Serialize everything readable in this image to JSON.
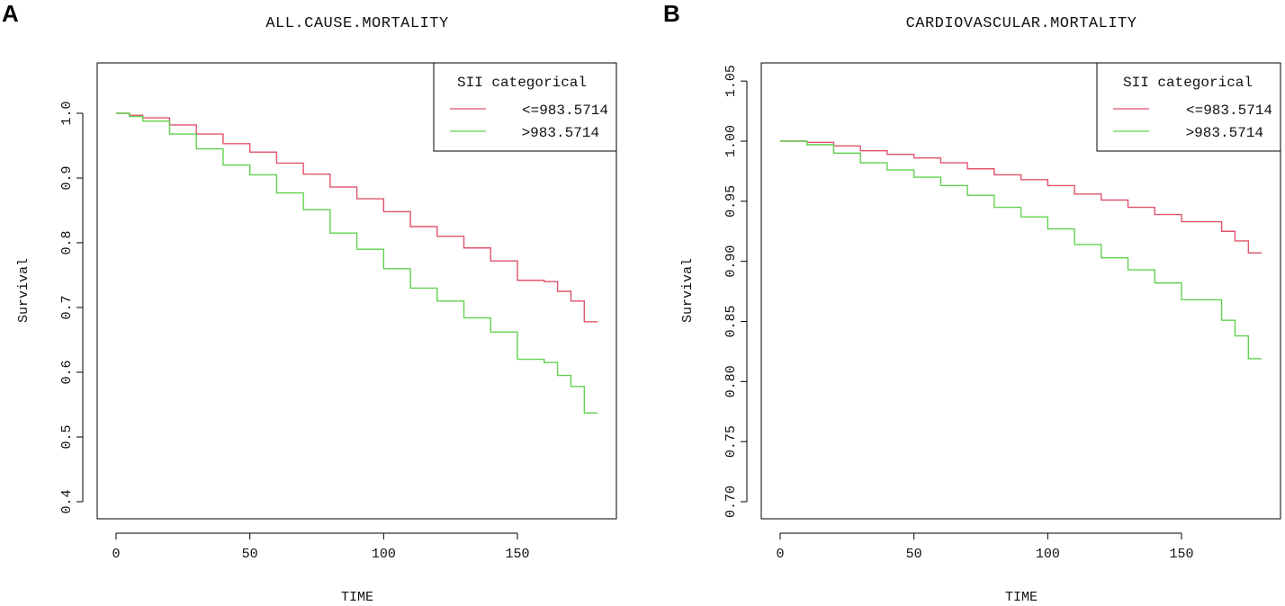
{
  "chart_data": [
    {
      "panel": "A",
      "type": "line",
      "title": "ALL.CAUSE.MORTALITY",
      "xlabel": "TIME",
      "ylabel": "Survival",
      "xlim": [
        0,
        180
      ],
      "ylim": [
        0.4,
        1.05
      ],
      "xticks": [
        0,
        50,
        100,
        150
      ],
      "yticks": [
        0.4,
        0.5,
        0.6,
        0.7,
        0.8,
        0.9,
        1.0
      ],
      "ytick_labels": [
        "0.4",
        "0.5",
        "0.6",
        "0.7",
        "0.8",
        "0.9",
        "1.0"
      ],
      "legend": {
        "title": "SII categorical",
        "position": "top-right"
      },
      "series": [
        {
          "name": "<=983.5714",
          "color": "#df536b",
          "x": [
            0,
            5,
            10,
            20,
            30,
            40,
            50,
            60,
            70,
            80,
            90,
            100,
            110,
            120,
            130,
            140,
            150,
            160,
            165,
            170,
            175,
            180
          ],
          "y": [
            1.0,
            0.997,
            0.993,
            0.982,
            0.968,
            0.953,
            0.94,
            0.923,
            0.906,
            0.886,
            0.868,
            0.848,
            0.825,
            0.81,
            0.792,
            0.772,
            0.742,
            0.74,
            0.725,
            0.71,
            0.678,
            0.678
          ]
        },
        {
          "name": ">983.5714",
          "color": "#61d04f",
          "x": [
            0,
            5,
            10,
            20,
            30,
            40,
            50,
            60,
            70,
            80,
            90,
            100,
            110,
            120,
            130,
            140,
            150,
            160,
            165,
            170,
            175,
            180
          ],
          "y": [
            1.0,
            0.995,
            0.988,
            0.968,
            0.945,
            0.92,
            0.905,
            0.877,
            0.851,
            0.815,
            0.79,
            0.76,
            0.73,
            0.71,
            0.684,
            0.662,
            0.62,
            0.615,
            0.595,
            0.578,
            0.537,
            0.537
          ]
        }
      ]
    },
    {
      "panel": "B",
      "type": "line",
      "title": "CARDIOVASCULAR.MORTALITY",
      "xlabel": "TIME",
      "ylabel": "Survival",
      "xlim": [
        0,
        180
      ],
      "ylim": [
        0.7,
        1.05
      ],
      "xticks": [
        0,
        50,
        100,
        150
      ],
      "yticks": [
        0.7,
        0.75,
        0.8,
        0.85,
        0.9,
        0.95,
        1.0,
        1.05
      ],
      "ytick_labels": [
        "0.70",
        "0.75",
        "0.80",
        "0.85",
        "0.90",
        "0.95",
        "1.00",
        "1.05"
      ],
      "legend": {
        "title": "SII categorical",
        "position": "top-right"
      },
      "series": [
        {
          "name": "<=983.5714",
          "color": "#df536b",
          "x": [
            0,
            10,
            20,
            30,
            40,
            50,
            60,
            70,
            80,
            90,
            100,
            110,
            120,
            130,
            140,
            150,
            160,
            165,
            170,
            175,
            180
          ],
          "y": [
            1.0,
            0.999,
            0.996,
            0.992,
            0.989,
            0.986,
            0.982,
            0.977,
            0.972,
            0.968,
            0.963,
            0.956,
            0.951,
            0.945,
            0.939,
            0.933,
            0.933,
            0.925,
            0.917,
            0.907,
            0.907
          ]
        },
        {
          "name": ">983.5714",
          "color": "#61d04f",
          "x": [
            0,
            10,
            20,
            30,
            40,
            50,
            60,
            70,
            80,
            90,
            100,
            110,
            120,
            130,
            140,
            150,
            160,
            165,
            170,
            175,
            180
          ],
          "y": [
            1.0,
            0.997,
            0.99,
            0.982,
            0.976,
            0.97,
            0.963,
            0.955,
            0.945,
            0.937,
            0.927,
            0.914,
            0.903,
            0.893,
            0.882,
            0.868,
            0.868,
            0.851,
            0.838,
            0.819,
            0.819
          ]
        }
      ]
    }
  ]
}
